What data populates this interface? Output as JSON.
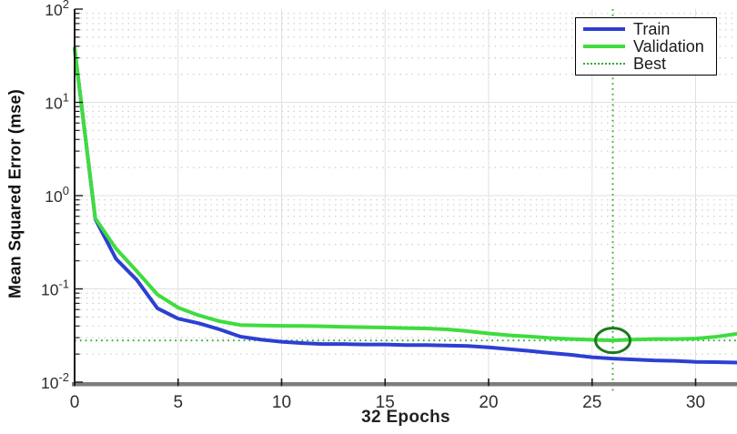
{
  "chart_data": {
    "type": "line",
    "title": "",
    "xlabel": "32 Epochs",
    "ylabel": "Mean Squared Error  (mse)",
    "x_axis": "epochs",
    "xlim": [
      0,
      32
    ],
    "ylim_log10": [
      -2,
      2
    ],
    "x_ticks": [
      0,
      5,
      10,
      15,
      20,
      25,
      30
    ],
    "y_tick_exponents": [
      2,
      1,
      0,
      -1,
      -2
    ],
    "grid": true,
    "minor_grid": true,
    "x": [
      0,
      1,
      2,
      3,
      4,
      5,
      6,
      7,
      8,
      9,
      10,
      11,
      12,
      13,
      14,
      15,
      16,
      17,
      18,
      19,
      20,
      21,
      22,
      23,
      24,
      25,
      26,
      27,
      28,
      29,
      30,
      31,
      32
    ],
    "series": [
      {
        "name": "Train",
        "values": [
          38,
          0.56,
          0.21,
          0.125,
          0.062,
          0.048,
          0.0428,
          0.0368,
          0.0308,
          0.0286,
          0.0271,
          0.0262,
          0.0256,
          0.0256,
          0.0253,
          0.0253,
          0.025,
          0.025,
          0.0247,
          0.0244,
          0.0236,
          0.0226,
          0.0216,
          0.0205,
          0.0196,
          0.0185,
          0.0179,
          0.0175,
          0.0171,
          0.0169,
          0.0165,
          0.0164,
          0.0162
        ]
      },
      {
        "name": "Validation",
        "values": [
          38,
          0.57,
          0.27,
          0.155,
          0.087,
          0.063,
          0.052,
          0.045,
          0.041,
          0.0405,
          0.0401,
          0.04,
          0.0397,
          0.0392,
          0.0388,
          0.0385,
          0.038,
          0.0376,
          0.0368,
          0.0352,
          0.0333,
          0.0318,
          0.0308,
          0.0297,
          0.029,
          0.0284,
          0.028,
          0.0286,
          0.029,
          0.029,
          0.0293,
          0.0307,
          0.033
        ]
      }
    ],
    "best": {
      "label": "Best",
      "epoch": 26,
      "value": 0.028
    },
    "legend": {
      "position": "top-right",
      "entries": [
        {
          "label": "Train",
          "style": "solid",
          "color_key": "train"
        },
        {
          "label": "Validation",
          "style": "solid",
          "color_key": "validation"
        },
        {
          "label": "Best",
          "style": "dotted",
          "color_key": "best"
        }
      ]
    },
    "colors": {
      "train": "#2d3fd3",
      "validation": "#3fdc3f",
      "best": "#2fae2f",
      "best_circle": "#1c7a1c",
      "grid_major": "#e0e0e0",
      "grid_minor": "#cdcdcd",
      "axis_line": "#1a1a1a",
      "x_axis_bar": "#7d7d7d",
      "tick_label": "#2e2e2e",
      "background": "#ffffff"
    }
  }
}
